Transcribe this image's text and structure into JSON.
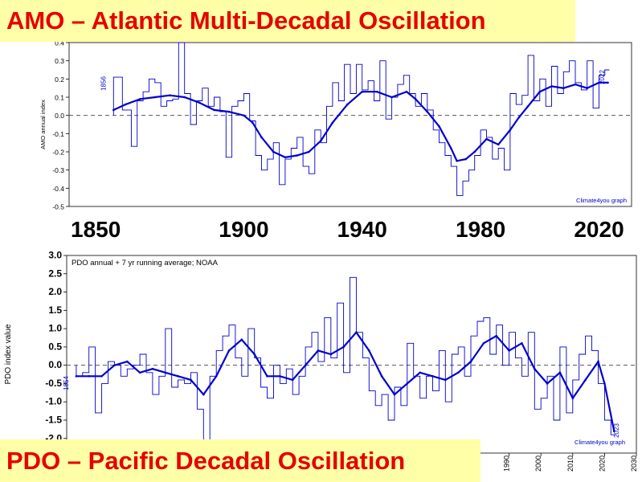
{
  "amo_banner": "AMO – Atlantic Multi-Decadal Oscillation",
  "pdo_banner": "PDO –  Pacific Decadal Oscillation",
  "amo_big_years": [
    "1850",
    "1900",
    "1940",
    "1980",
    "2020"
  ],
  "colors": {
    "line": "#0000cc",
    "banner_bg": "#ffffa8",
    "banner_text": "#e60000",
    "grid_dash": "#555555"
  },
  "chart_data": [
    {
      "type": "line",
      "title": "AMO – Atlantic Multi-Decadal Oscillation",
      "ylabel": "AMO annual index",
      "xlim": [
        1841,
        2031
      ],
      "ylim": [
        -0.5,
        0.4
      ],
      "yticks": [
        0.4,
        0.3,
        0.2,
        0.1,
        0.0,
        -0.1,
        -0.2,
        -0.3,
        -0.4,
        -0.5
      ],
      "start_label": "1856",
      "end_label": "2022",
      "credit": "Climate4you graph",
      "reference_line": 0.0,
      "series": [
        {
          "style": "step",
          "x": [
            1856,
            1859,
            1862,
            1864,
            1866,
            1868,
            1870,
            1872,
            1874,
            1876,
            1878,
            1880,
            1882,
            1884,
            1886,
            1888,
            1890,
            1892,
            1894,
            1896,
            1898,
            1900,
            1902,
            1904,
            1906,
            1908,
            1910,
            1912,
            1914,
            1916,
            1918,
            1920,
            1922,
            1924,
            1926,
            1928,
            1930,
            1932,
            1934,
            1936,
            1938,
            1940,
            1942,
            1944,
            1946,
            1948,
            1950,
            1952,
            1954,
            1956,
            1958,
            1960,
            1962,
            1964,
            1966,
            1968,
            1970,
            1972,
            1974,
            1976,
            1978,
            1980,
            1982,
            1984,
            1986,
            1988,
            1990,
            1992,
            1994,
            1996,
            1998,
            2000,
            2002,
            2004,
            2006,
            2008,
            2010,
            2012,
            2014,
            2016,
            2018,
            2020,
            2022
          ],
          "y": [
            0.21,
            0.03,
            -0.17,
            0.08,
            0.13,
            0.2,
            0.18,
            0.05,
            0.08,
            0.09,
            0.4,
            0.12,
            -0.05,
            0.08,
            0.15,
            0.05,
            0.1,
            0.02,
            -0.23,
            0.05,
            0.08,
            0.12,
            -0.03,
            -0.22,
            -0.3,
            -0.24,
            -0.15,
            -0.38,
            -0.24,
            -0.18,
            -0.12,
            -0.28,
            -0.32,
            -0.08,
            -0.15,
            0.05,
            0.18,
            0.08,
            0.28,
            0.12,
            0.28,
            0.14,
            0.19,
            0.08,
            0.3,
            -0.02,
            0.1,
            0.17,
            0.22,
            0.12,
            0.05,
            0.12,
            0.03,
            -0.08,
            -0.15,
            -0.22,
            -0.28,
            -0.44,
            -0.36,
            -0.3,
            -0.22,
            -0.08,
            -0.12,
            -0.24,
            -0.18,
            -0.3,
            0.12,
            0.06,
            0.11,
            0.33,
            0.08,
            0.2,
            0.05,
            0.27,
            0.12,
            0.24,
            0.3,
            0.18,
            0.14,
            0.3,
            0.04,
            0.22,
            0.25
          ]
        },
        {
          "name": "running average",
          "x": [
            1856,
            1860,
            1865,
            1870,
            1875,
            1880,
            1885,
            1890,
            1895,
            1900,
            1903,
            1906,
            1910,
            1914,
            1918,
            1922,
            1926,
            1930,
            1935,
            1940,
            1945,
            1950,
            1955,
            1958,
            1962,
            1966,
            1970,
            1972,
            1975,
            1978,
            1982,
            1986,
            1990,
            1993,
            1996,
            2000,
            2004,
            2008,
            2012,
            2016,
            2020,
            2023
          ],
          "y": [
            0.03,
            0.06,
            0.09,
            0.1,
            0.11,
            0.1,
            0.07,
            0.03,
            0.02,
            0.0,
            -0.04,
            -0.12,
            -0.2,
            -0.23,
            -0.22,
            -0.2,
            -0.14,
            -0.04,
            0.06,
            0.13,
            0.13,
            0.1,
            0.13,
            0.09,
            0.02,
            -0.06,
            -0.18,
            -0.25,
            -0.24,
            -0.2,
            -0.13,
            -0.16,
            -0.08,
            -0.01,
            0.05,
            0.13,
            0.16,
            0.15,
            0.17,
            0.15,
            0.18,
            0.18
          ]
        }
      ]
    },
    {
      "type": "line",
      "title": "PDO –  Pacific Decadal Oscillation",
      "caption": "PDO annual + 7 yr running average; NOAA",
      "ylabel": "PDO index value",
      "xlim": [
        1851,
        2030
      ],
      "ylim": [
        -2.4,
        3.0
      ],
      "yticks": [
        3.0,
        2.5,
        2.0,
        1.5,
        1.0,
        0.5,
        0.0,
        -0.5,
        -1.0,
        -1.5,
        -2.0
      ],
      "xtick_labels": [
        "1990",
        "2000",
        "2010",
        "2020",
        "2030"
      ],
      "xtick_values": [
        1990,
        2000,
        2010,
        2020,
        2030
      ],
      "start_label": "1854",
      "end_label": "2023",
      "credit": "Climate4you graph",
      "reference_line": 0.0,
      "series": [
        {
          "style": "step",
          "x": [
            1854,
            1856,
            1858,
            1860,
            1862,
            1864,
            1866,
            1868,
            1870,
            1872,
            1874,
            1876,
            1878,
            1880,
            1882,
            1884,
            1886,
            1888,
            1890,
            1892,
            1894,
            1896,
            1898,
            1900,
            1902,
            1904,
            1906,
            1908,
            1910,
            1912,
            1914,
            1916,
            1918,
            1920,
            1922,
            1924,
            1926,
            1928,
            1930,
            1932,
            1934,
            1936,
            1938,
            1940,
            1942,
            1944,
            1946,
            1948,
            1950,
            1952,
            1954,
            1956,
            1958,
            1960,
            1962,
            1964,
            1966,
            1968,
            1970,
            1972,
            1974,
            1976,
            1978,
            1980,
            1982,
            1984,
            1986,
            1988,
            1990,
            1992,
            1994,
            1996,
            1998,
            2000,
            2002,
            2004,
            2006,
            2008,
            2010,
            2012,
            2014,
            2016,
            2018,
            2020,
            2022
          ],
          "y": [
            -0.3,
            -0.2,
            0.5,
            -1.3,
            -0.5,
            0.1,
            0.0,
            -0.3,
            -0.1,
            0.0,
            0.3,
            -0.2,
            -0.8,
            -0.3,
            1.0,
            -0.6,
            -0.4,
            -0.5,
            -0.2,
            -1.2,
            -2.2,
            -0.3,
            0.4,
            0.8,
            1.1,
            0.2,
            -0.3,
            1.0,
            0.2,
            -0.6,
            -0.9,
            0.0,
            -0.5,
            -0.1,
            -0.8,
            -0.3,
            0.5,
            0.9,
            0.1,
            1.3,
            0.2,
            1.7,
            -0.2,
            2.4,
            0.9,
            0.2,
            -0.7,
            -1.1,
            -0.8,
            -1.5,
            -0.6,
            -1.1,
            0.6,
            -0.3,
            -0.9,
            -0.3,
            -0.7,
            0.4,
            -1.0,
            0.3,
            0.5,
            -0.3,
            0.8,
            1.2,
            1.3,
            0.3,
            1.1,
            0.0,
            0.9,
            0.2,
            -0.3,
            0.9,
            -1.2,
            -0.9,
            -0.3,
            -1.5,
            0.5,
            -1.3,
            -0.4,
            0.3,
            0.8,
            0.4,
            -0.5,
            -1.5,
            -1.9
          ]
        },
        {
          "name": "running average",
          "x": [
            1854,
            1858,
            1862,
            1866,
            1870,
            1874,
            1878,
            1882,
            1886,
            1890,
            1894,
            1898,
            1902,
            1906,
            1910,
            1914,
            1918,
            1922,
            1926,
            1930,
            1934,
            1938,
            1942,
            1946,
            1950,
            1954,
            1958,
            1962,
            1966,
            1970,
            1974,
            1978,
            1982,
            1986,
            1990,
            1994,
            1998,
            2002,
            2006,
            2010,
            2014,
            2018,
            2020,
            2023
          ],
          "y": [
            -0.3,
            -0.3,
            -0.3,
            0.0,
            0.1,
            -0.2,
            -0.1,
            -0.2,
            -0.3,
            -0.4,
            -0.8,
            -0.3,
            0.4,
            0.7,
            0.3,
            -0.3,
            -0.3,
            -0.4,
            0.0,
            0.4,
            0.3,
            0.5,
            0.9,
            0.4,
            -0.3,
            -0.8,
            -0.5,
            -0.2,
            -0.3,
            -0.4,
            -0.2,
            0.1,
            0.6,
            0.8,
            0.4,
            0.6,
            -0.1,
            -0.5,
            -0.2,
            -0.9,
            -0.4,
            0.1,
            -0.5,
            -1.8
          ]
        }
      ]
    }
  ]
}
